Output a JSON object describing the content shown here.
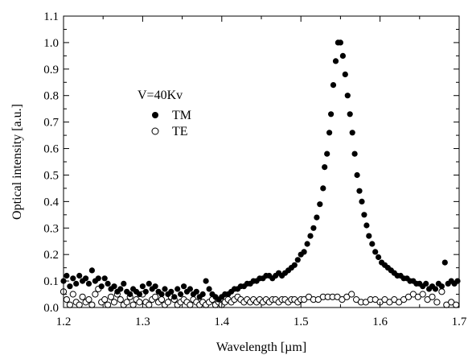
{
  "chart_data": {
    "type": "scatter",
    "title": "",
    "xlabel": "Wavelength  [µm]",
    "ylabel": "Optical intensity  [a.u.]",
    "xlim": [
      1.2,
      1.7
    ],
    "ylim": [
      0.0,
      1.1
    ],
    "xticks": [
      "1.2",
      "1.3",
      "1.4",
      "1.5",
      "1.6",
      "1.7"
    ],
    "yticks": [
      "0.0",
      "0.1",
      "0.2",
      "0.3",
      "0.4",
      "0.5",
      "0.6",
      "0.7",
      "0.8",
      "0.9",
      "1.0",
      "1.1"
    ],
    "legend": {
      "title": "V=40Kv",
      "position": "upper-left"
    },
    "grid": false,
    "series": [
      {
        "name": "TM",
        "marker": "filled-circle",
        "color": "#000000",
        "points": [
          [
            1.2,
            0.1
          ],
          [
            1.204,
            0.12
          ],
          [
            1.208,
            0.08
          ],
          [
            1.212,
            0.11
          ],
          [
            1.216,
            0.09
          ],
          [
            1.22,
            0.12
          ],
          [
            1.224,
            0.1
          ],
          [
            1.228,
            0.11
          ],
          [
            1.232,
            0.09
          ],
          [
            1.236,
            0.14
          ],
          [
            1.24,
            0.1
          ],
          [
            1.244,
            0.11
          ],
          [
            1.248,
            0.08
          ],
          [
            1.252,
            0.11
          ],
          [
            1.256,
            0.09
          ],
          [
            1.26,
            0.07
          ],
          [
            1.264,
            0.08
          ],
          [
            1.268,
            0.06
          ],
          [
            1.272,
            0.07
          ],
          [
            1.276,
            0.09
          ],
          [
            1.28,
            0.06
          ],
          [
            1.284,
            0.05
          ],
          [
            1.288,
            0.07
          ],
          [
            1.292,
            0.06
          ],
          [
            1.296,
            0.05
          ],
          [
            1.3,
            0.08
          ],
          [
            1.304,
            0.06
          ],
          [
            1.308,
            0.09
          ],
          [
            1.312,
            0.07
          ],
          [
            1.316,
            0.08
          ],
          [
            1.32,
            0.06
          ],
          [
            1.324,
            0.05
          ],
          [
            1.328,
            0.07
          ],
          [
            1.332,
            0.05
          ],
          [
            1.336,
            0.06
          ],
          [
            1.34,
            0.04
          ],
          [
            1.344,
            0.07
          ],
          [
            1.348,
            0.05
          ],
          [
            1.352,
            0.08
          ],
          [
            1.356,
            0.06
          ],
          [
            1.36,
            0.07
          ],
          [
            1.364,
            0.05
          ],
          [
            1.368,
            0.06
          ],
          [
            1.372,
            0.04
          ],
          [
            1.376,
            0.05
          ],
          [
            1.38,
            0.1
          ],
          [
            1.384,
            0.07
          ],
          [
            1.388,
            0.05
          ],
          [
            1.392,
            0.04
          ],
          [
            1.396,
            0.03
          ],
          [
            1.4,
            0.04
          ],
          [
            1.404,
            0.05
          ],
          [
            1.408,
            0.05
          ],
          [
            1.412,
            0.06
          ],
          [
            1.416,
            0.07
          ],
          [
            1.42,
            0.07
          ],
          [
            1.424,
            0.08
          ],
          [
            1.428,
            0.08
          ],
          [
            1.432,
            0.09
          ],
          [
            1.436,
            0.09
          ],
          [
            1.44,
            0.1
          ],
          [
            1.444,
            0.1
          ],
          [
            1.448,
            0.11
          ],
          [
            1.452,
            0.11
          ],
          [
            1.456,
            0.12
          ],
          [
            1.46,
            0.12
          ],
          [
            1.464,
            0.11
          ],
          [
            1.468,
            0.12
          ],
          [
            1.472,
            0.13
          ],
          [
            1.476,
            0.12
          ],
          [
            1.48,
            0.13
          ],
          [
            1.484,
            0.14
          ],
          [
            1.488,
            0.15
          ],
          [
            1.492,
            0.16
          ],
          [
            1.496,
            0.18
          ],
          [
            1.5,
            0.2
          ],
          [
            1.504,
            0.21
          ],
          [
            1.508,
            0.24
          ],
          [
            1.512,
            0.27
          ],
          [
            1.516,
            0.3
          ],
          [
            1.52,
            0.34
          ],
          [
            1.524,
            0.39
          ],
          [
            1.528,
            0.45
          ],
          [
            1.53,
            0.53
          ],
          [
            1.533,
            0.58
          ],
          [
            1.536,
            0.66
          ],
          [
            1.538,
            0.73
          ],
          [
            1.541,
            0.84
          ],
          [
            1.544,
            0.93
          ],
          [
            1.547,
            1.0
          ],
          [
            1.55,
            1.0
          ],
          [
            1.553,
            0.95
          ],
          [
            1.556,
            0.88
          ],
          [
            1.559,
            0.8
          ],
          [
            1.562,
            0.73
          ],
          [
            1.565,
            0.66
          ],
          [
            1.568,
            0.58
          ],
          [
            1.571,
            0.5
          ],
          [
            1.574,
            0.44
          ],
          [
            1.577,
            0.4
          ],
          [
            1.58,
            0.35
          ],
          [
            1.583,
            0.31
          ],
          [
            1.586,
            0.27
          ],
          [
            1.59,
            0.24
          ],
          [
            1.594,
            0.21
          ],
          [
            1.598,
            0.19
          ],
          [
            1.602,
            0.17
          ],
          [
            1.606,
            0.16
          ],
          [
            1.61,
            0.15
          ],
          [
            1.614,
            0.14
          ],
          [
            1.618,
            0.13
          ],
          [
            1.622,
            0.12
          ],
          [
            1.626,
            0.12
          ],
          [
            1.63,
            0.11
          ],
          [
            1.634,
            0.11
          ],
          [
            1.638,
            0.1
          ],
          [
            1.642,
            0.1
          ],
          [
            1.646,
            0.09
          ],
          [
            1.65,
            0.09
          ],
          [
            1.654,
            0.08
          ],
          [
            1.658,
            0.09
          ],
          [
            1.662,
            0.07
          ],
          [
            1.666,
            0.08
          ],
          [
            1.67,
            0.07
          ],
          [
            1.674,
            0.09
          ],
          [
            1.678,
            0.08
          ],
          [
            1.682,
            0.17
          ],
          [
            1.686,
            0.09
          ],
          [
            1.69,
            0.1
          ],
          [
            1.694,
            0.09
          ],
          [
            1.698,
            0.1
          ]
        ]
      },
      {
        "name": "TE",
        "marker": "open-circle",
        "color": "#000000",
        "points": [
          [
            1.2,
            0.06
          ],
          [
            1.204,
            0.03
          ],
          [
            1.208,
            0.01
          ],
          [
            1.212,
            0.05
          ],
          [
            1.216,
            0.02
          ],
          [
            1.22,
            0.01
          ],
          [
            1.224,
            0.04
          ],
          [
            1.228,
            0.02
          ],
          [
            1.232,
            0.03
          ],
          [
            1.236,
            0.01
          ],
          [
            1.24,
            0.05
          ],
          [
            1.244,
            0.07
          ],
          [
            1.248,
            0.02
          ],
          [
            1.252,
            0.03
          ],
          [
            1.256,
            0.01
          ],
          [
            1.26,
            0.04
          ],
          [
            1.264,
            0.02
          ],
          [
            1.268,
            0.05
          ],
          [
            1.272,
            0.03
          ],
          [
            1.276,
            0.01
          ],
          [
            1.28,
            0.02
          ],
          [
            1.284,
            0.04
          ],
          [
            1.288,
            0.01
          ],
          [
            1.292,
            0.03
          ],
          [
            1.296,
            0.02
          ],
          [
            1.3,
            0.05
          ],
          [
            1.304,
            0.02
          ],
          [
            1.308,
            0.01
          ],
          [
            1.312,
            0.03
          ],
          [
            1.316,
            0.04
          ],
          [
            1.32,
            0.02
          ],
          [
            1.324,
            0.03
          ],
          [
            1.328,
            0.01
          ],
          [
            1.332,
            0.02
          ],
          [
            1.336,
            0.04
          ],
          [
            1.34,
            0.03
          ],
          [
            1.344,
            0.01
          ],
          [
            1.348,
            0.02
          ],
          [
            1.352,
            0.03
          ],
          [
            1.356,
            0.02
          ],
          [
            1.36,
            0.01
          ],
          [
            1.364,
            0.03
          ],
          [
            1.368,
            0.02
          ],
          [
            1.372,
            0.01
          ],
          [
            1.376,
            0.02
          ],
          [
            1.38,
            0.01
          ],
          [
            1.384,
            0.02
          ],
          [
            1.388,
            0.03
          ],
          [
            1.392,
            0.01
          ],
          [
            1.396,
            0.02
          ],
          [
            1.4,
            0.01
          ],
          [
            1.404,
            0.02
          ],
          [
            1.408,
            0.03
          ],
          [
            1.412,
            0.02
          ],
          [
            1.416,
            0.03
          ],
          [
            1.42,
            0.04
          ],
          [
            1.424,
            0.03
          ],
          [
            1.428,
            0.02
          ],
          [
            1.432,
            0.03
          ],
          [
            1.436,
            0.02
          ],
          [
            1.44,
            0.03
          ],
          [
            1.444,
            0.02
          ],
          [
            1.448,
            0.03
          ],
          [
            1.452,
            0.02
          ],
          [
            1.456,
            0.03
          ],
          [
            1.46,
            0.02
          ],
          [
            1.464,
            0.03
          ],
          [
            1.468,
            0.03
          ],
          [
            1.472,
            0.02
          ],
          [
            1.476,
            0.03
          ],
          [
            1.48,
            0.03
          ],
          [
            1.484,
            0.02
          ],
          [
            1.488,
            0.03
          ],
          [
            1.492,
            0.03
          ],
          [
            1.496,
            0.02
          ],
          [
            1.5,
            0.03
          ],
          [
            1.504,
            0.03
          ],
          [
            1.51,
            0.04
          ],
          [
            1.516,
            0.03
          ],
          [
            1.522,
            0.03
          ],
          [
            1.528,
            0.04
          ],
          [
            1.534,
            0.04
          ],
          [
            1.54,
            0.04
          ],
          [
            1.546,
            0.04
          ],
          [
            1.552,
            0.03
          ],
          [
            1.558,
            0.04
          ],
          [
            1.564,
            0.05
          ],
          [
            1.57,
            0.03
          ],
          [
            1.576,
            0.02
          ],
          [
            1.582,
            0.02
          ],
          [
            1.588,
            0.03
          ],
          [
            1.594,
            0.03
          ],
          [
            1.6,
            0.02
          ],
          [
            1.606,
            0.03
          ],
          [
            1.612,
            0.02
          ],
          [
            1.618,
            0.03
          ],
          [
            1.624,
            0.02
          ],
          [
            1.63,
            0.03
          ],
          [
            1.636,
            0.04
          ],
          [
            1.642,
            0.05
          ],
          [
            1.648,
            0.04
          ],
          [
            1.654,
            0.05
          ],
          [
            1.66,
            0.03
          ],
          [
            1.666,
            0.04
          ],
          [
            1.672,
            0.02
          ],
          [
            1.678,
            0.06
          ],
          [
            1.684,
            0.01
          ],
          [
            1.69,
            0.02
          ],
          [
            1.696,
            0.01
          ]
        ]
      }
    ]
  }
}
